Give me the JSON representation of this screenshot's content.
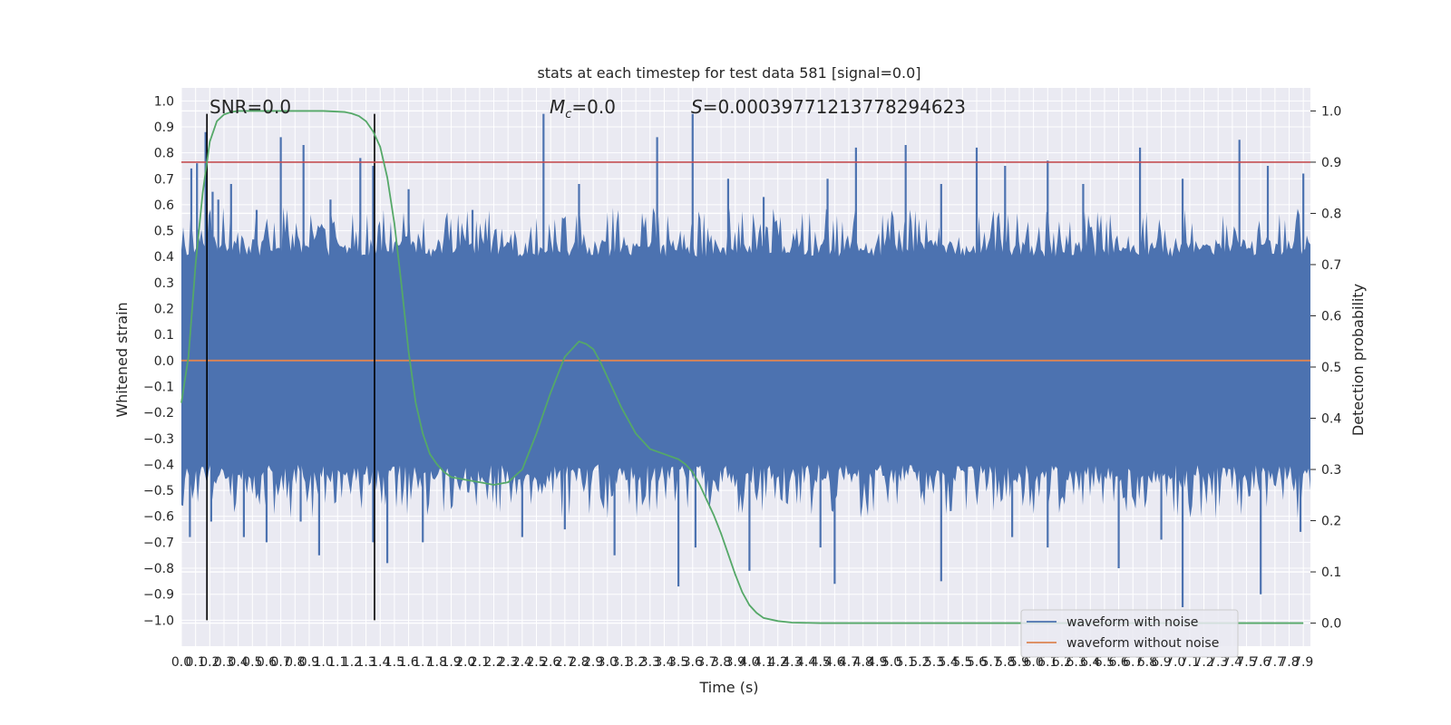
{
  "chart_data": {
    "type": "line",
    "title": "stats at each timestep for test data 581 [signal=0.0]",
    "xlabel": "Time (s)",
    "ylabel": "Whitened strain",
    "y2label": "Detection probability",
    "xlim": [
      0.0,
      7.95
    ],
    "ylim": [
      -1.1,
      1.05
    ],
    "y2lim": [
      -0.045,
      1.045
    ],
    "x_ticks": [
      "0.0",
      "0.1",
      "0.2",
      "0.3",
      "0.4",
      "0.5",
      "0.6",
      "0.7",
      "0.8",
      "0.9",
      "1.0",
      "1.1",
      "1.2",
      "1.3",
      "1.4",
      "1.5",
      "1.6",
      "1.7",
      "1.8",
      "1.9",
      "2.0",
      "2.1",
      "2.2",
      "2.3",
      "2.4",
      "2.5",
      "2.6",
      "2.7",
      "2.8",
      "2.9",
      "3.0",
      "3.1",
      "3.2",
      "3.3",
      "3.4",
      "3.5",
      "3.6",
      "3.7",
      "3.8",
      "3.9",
      "4.0",
      "4.1",
      "4.2",
      "4.3",
      "4.4",
      "4.5",
      "4.6",
      "4.7",
      "4.8",
      "4.9",
      "5.0",
      "5.1",
      "5.2",
      "5.3",
      "5.4",
      "5.5",
      "5.6",
      "5.7",
      "5.8",
      "5.9",
      "6.0",
      "6.1",
      "6.2",
      "6.3",
      "6.4",
      "6.5",
      "6.6",
      "6.7",
      "6.8",
      "6.9",
      "7.0",
      "7.1",
      "7.2",
      "7.3",
      "7.4",
      "7.5",
      "7.6",
      "7.7",
      "7.8",
      "7.9"
    ],
    "y_ticks": [
      "1.0",
      "0.9",
      "0.8",
      "0.7",
      "0.6",
      "0.5",
      "0.4",
      "0.3",
      "0.2",
      "0.1",
      "0.0",
      "−0.1",
      "−0.2",
      "−0.3",
      "−0.4",
      "−0.5",
      "−0.6",
      "−0.7",
      "−0.8",
      "−0.9",
      "−1.0"
    ],
    "y2_ticks": [
      "1.0",
      "0.9",
      "0.8",
      "0.7",
      "0.6",
      "0.5",
      "0.4",
      "0.3",
      "0.2",
      "0.1",
      "0.0"
    ],
    "annotations": {
      "snr": "SNR=0.0",
      "mc_symbol": "M",
      "mc_sub": "c",
      "mc_value": "=0.0",
      "s_symbol": "S",
      "s_value": "=0.00039771213778294623"
    },
    "vertical_lines_x": [
      0.18,
      1.36
    ],
    "threshold_y2": 0.9,
    "series": [
      {
        "name": "waveform with noise",
        "axis": "left",
        "color": "#4c72b0",
        "noise_band": [
          -0.4,
          0.4
        ],
        "spikes": [
          [
            0.07,
            0.74
          ],
          [
            0.11,
            0.76
          ],
          [
            0.17,
            0.88
          ],
          [
            0.22,
            0.65
          ],
          [
            0.26,
            0.62
          ],
          [
            0.35,
            0.68
          ],
          [
            0.53,
            0.58
          ],
          [
            0.7,
            0.86
          ],
          [
            0.86,
            0.83
          ],
          [
            1.05,
            0.62
          ],
          [
            1.26,
            0.78
          ],
          [
            1.35,
            0.75
          ],
          [
            1.6,
            0.66
          ],
          [
            2.05,
            0.58
          ],
          [
            2.55,
            0.95
          ],
          [
            2.8,
            0.68
          ],
          [
            3.35,
            0.86
          ],
          [
            3.6,
            0.95
          ],
          [
            3.85,
            0.7
          ],
          [
            4.1,
            0.63
          ],
          [
            4.55,
            0.7
          ],
          [
            4.75,
            0.82
          ],
          [
            5.1,
            0.83
          ],
          [
            5.35,
            0.68
          ],
          [
            5.6,
            0.82
          ],
          [
            5.8,
            0.75
          ],
          [
            6.1,
            0.77
          ],
          [
            6.35,
            0.68
          ],
          [
            6.75,
            0.82
          ],
          [
            7.05,
            0.7
          ],
          [
            7.45,
            0.85
          ],
          [
            7.65,
            0.75
          ],
          [
            7.9,
            0.72
          ],
          [
            0.06,
            -0.68
          ],
          [
            0.21,
            -0.62
          ],
          [
            0.44,
            -0.68
          ],
          [
            0.6,
            -0.7
          ],
          [
            0.84,
            -0.62
          ],
          [
            0.97,
            -0.75
          ],
          [
            1.35,
            -0.7
          ],
          [
            1.45,
            -0.78
          ],
          [
            1.7,
            -0.7
          ],
          [
            2.4,
            -0.68
          ],
          [
            2.7,
            -0.65
          ],
          [
            3.05,
            -0.75
          ],
          [
            3.5,
            -0.87
          ],
          [
            3.62,
            -0.72
          ],
          [
            4.0,
            -0.81
          ],
          [
            4.5,
            -0.72
          ],
          [
            4.6,
            -0.86
          ],
          [
            5.35,
            -0.85
          ],
          [
            5.85,
            -0.68
          ],
          [
            6.1,
            -0.72
          ],
          [
            6.6,
            -0.8
          ],
          [
            6.9,
            -0.69
          ],
          [
            7.05,
            -0.95
          ],
          [
            7.6,
            -0.9
          ],
          [
            7.88,
            -0.66
          ]
        ]
      },
      {
        "name": "waveform without noise",
        "axis": "left",
        "color": "#dd8452",
        "x": [
          0.0,
          7.95
        ],
        "y": [
          0.0,
          0.0
        ]
      },
      {
        "axis": "right",
        "color": "#55a868",
        "x": [
          0.0,
          0.05,
          0.1,
          0.15,
          0.2,
          0.25,
          0.3,
          0.35,
          0.4,
          0.5,
          0.7,
          1.0,
          1.15,
          1.2,
          1.25,
          1.3,
          1.35,
          1.4,
          1.45,
          1.5,
          1.55,
          1.6,
          1.65,
          1.7,
          1.75,
          1.8,
          1.85,
          1.9,
          2.0,
          2.1,
          2.2,
          2.3,
          2.4,
          2.5,
          2.6,
          2.7,
          2.8,
          2.85,
          2.9,
          2.95,
          3.0,
          3.05,
          3.1,
          3.15,
          3.2,
          3.25,
          3.3,
          3.4,
          3.5,
          3.55,
          3.6,
          3.65,
          3.7,
          3.75,
          3.8,
          3.85,
          3.9,
          3.95,
          4.0,
          4.05,
          4.1,
          4.2,
          4.3,
          4.5,
          5.0,
          6.0,
          7.0,
          7.9
        ],
        "y": [
          0.43,
          0.52,
          0.7,
          0.84,
          0.94,
          0.98,
          0.993,
          0.998,
          1.0,
          1.0,
          1.0,
          1.0,
          0.998,
          0.995,
          0.99,
          0.98,
          0.96,
          0.93,
          0.87,
          0.78,
          0.66,
          0.53,
          0.43,
          0.37,
          0.33,
          0.31,
          0.295,
          0.285,
          0.28,
          0.275,
          0.27,
          0.275,
          0.3,
          0.37,
          0.45,
          0.52,
          0.55,
          0.545,
          0.535,
          0.51,
          0.48,
          0.45,
          0.42,
          0.395,
          0.37,
          0.355,
          0.34,
          0.33,
          0.32,
          0.31,
          0.295,
          0.27,
          0.24,
          0.21,
          0.175,
          0.135,
          0.095,
          0.06,
          0.035,
          0.02,
          0.01,
          0.004,
          0.001,
          0.0,
          0.0,
          0.0,
          0.0,
          0.0
        ]
      }
    ],
    "legend_location": "lower right",
    "grid": true,
    "colors": {
      "background": "#eaeaf2",
      "grid": "#ffffff",
      "threshold": "#c44e52",
      "vline": "#000000"
    }
  }
}
